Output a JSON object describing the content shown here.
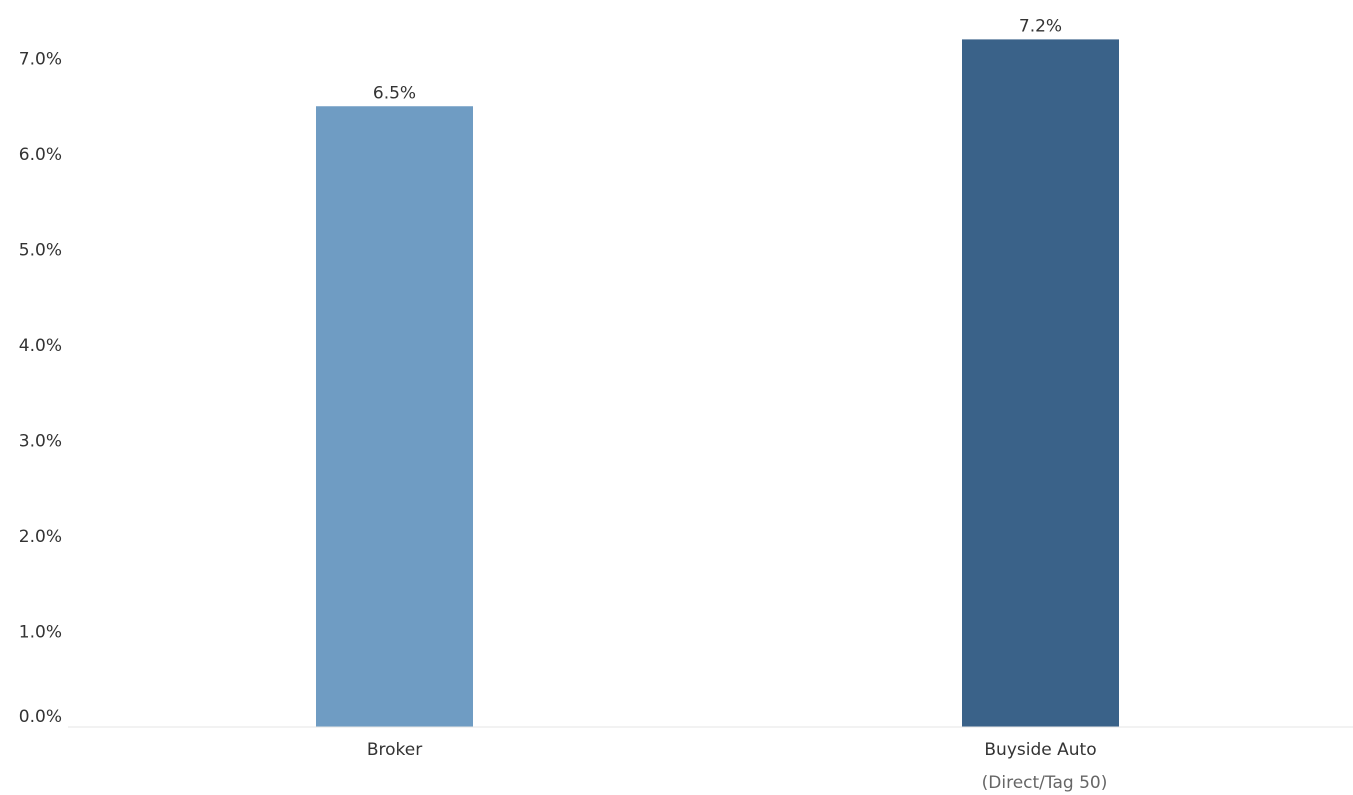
{
  "chart_data": {
    "type": "bar",
    "categories": [
      "Broker",
      "Buyside Auto"
    ],
    "category_sublabels": [
      "",
      "(Direct/Tag 50)"
    ],
    "values": [
      6.5,
      7.2
    ],
    "data_labels": [
      "6.5%",
      "7.2%"
    ],
    "colors": [
      "#6f9cc3",
      "#3a6289"
    ],
    "ylim": [
      0,
      7.3
    ],
    "yticks": [
      0,
      1,
      2,
      3,
      4,
      5,
      6,
      7
    ],
    "ytick_labels": [
      "0.0%",
      "1.0%",
      "2.0%",
      "3.0%",
      "4.0%",
      "5.0%",
      "6.0%",
      "7.0%"
    ],
    "grid": false,
    "title": "",
    "xlabel": "",
    "ylabel": ""
  }
}
